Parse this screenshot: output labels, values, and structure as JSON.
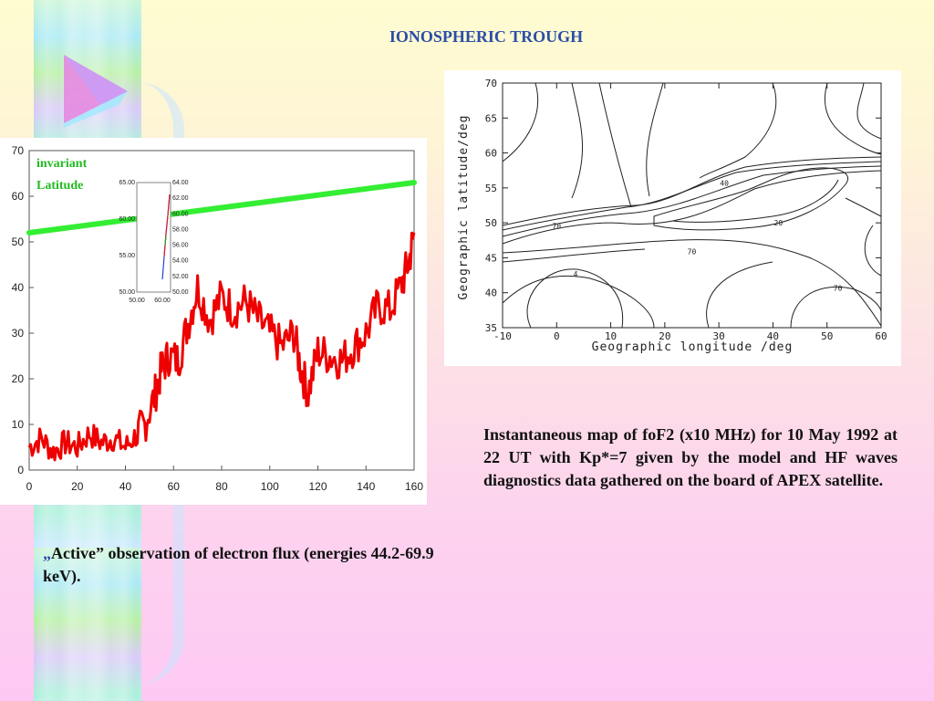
{
  "title": "IONOSPHERIC TROUGH",
  "captions": {
    "right": "Instantaneous map of foF2 (x10 MHz) for 10 May 1992 at 22 UT with Kp*=7 given by the model and HF waves diagnostics data gathered on the board of APEX satellite.",
    "left_quote": "„",
    "left": "Active” observation of  electron flux (energies 44.2-69.9 keV)."
  },
  "colors": {
    "title": "#2a4ea8",
    "flux_line": "#ee0000",
    "latitude_line": "#33ee33"
  },
  "chart_data": [
    {
      "type": "line",
      "title": "",
      "xlabel": "",
      "ylabel": "",
      "xlim": [
        0,
        160
      ],
      "ylim": [
        0,
        70
      ],
      "x_ticks": [
        "0",
        "20",
        "40",
        "60",
        "80",
        "100",
        "120",
        "140",
        "160"
      ],
      "y_ticks": [
        "0",
        "10",
        "20",
        "30",
        "40",
        "50",
        "60",
        "70"
      ],
      "annotation": [
        "invariant",
        "Latitude"
      ],
      "series": [
        {
          "name": "",
          "color": "#33ee33",
          "x": [
            0,
            160
          ],
          "y": [
            52,
            63
          ]
        },
        {
          "name": "",
          "color": "#ee0000",
          "x": [
            0,
            5,
            10,
            15,
            20,
            25,
            30,
            35,
            40,
            45,
            48,
            52,
            55,
            58,
            62,
            66,
            70,
            75,
            80,
            85,
            90,
            95,
            100,
            105,
            110,
            113,
            116,
            120,
            125,
            130,
            135,
            140,
            145,
            150,
            155,
            158,
            160
          ],
          "y": [
            5,
            7,
            4,
            6,
            5,
            8,
            6,
            7,
            5,
            8,
            10,
            16,
            22,
            25,
            24,
            32,
            40,
            33,
            38,
            35,
            37,
            33,
            30,
            27,
            30,
            22,
            17,
            26,
            25,
            24,
            27,
            30,
            36,
            35,
            41,
            46,
            52
          ]
        }
      ],
      "inset": {
        "type": "line",
        "x_ticks": [
          "50.00",
          "60.00"
        ],
        "y_left_ticks": [
          "50.00",
          "55.00",
          "60.00",
          "65.00"
        ],
        "y_right_ticks": [
          "50.00",
          "52.00",
          "54.00",
          "56.00",
          "58.00",
          "60.00",
          "62.00",
          "64.00"
        ]
      }
    },
    {
      "type": "contour",
      "title": "",
      "xlabel": "Geographic  longitude /deg",
      "ylabel": "Geographic latitude/deg",
      "xlim": [
        -10,
        60
      ],
      "ylim": [
        35,
        70
      ],
      "x_ticks": [
        "-10",
        "0",
        "10",
        "20",
        "30",
        "40",
        "50",
        "60"
      ],
      "y_ticks": [
        "35",
        "40",
        "45",
        "50",
        "55",
        "60",
        "65",
        "70"
      ],
      "contour_labels": [
        {
          "text": "70",
          "x": 0,
          "y": 49.2
        },
        {
          "text": "70",
          "x": 25,
          "y": 45.5
        },
        {
          "text": "70",
          "x": 52,
          "y": 40.3
        },
        {
          "text": "20",
          "x": 41,
          "y": 49.6
        },
        {
          "text": "40",
          "x": 31,
          "y": 55.3
        },
        {
          "text": "4",
          "x": 3.5,
          "y": 42.3
        }
      ]
    }
  ]
}
